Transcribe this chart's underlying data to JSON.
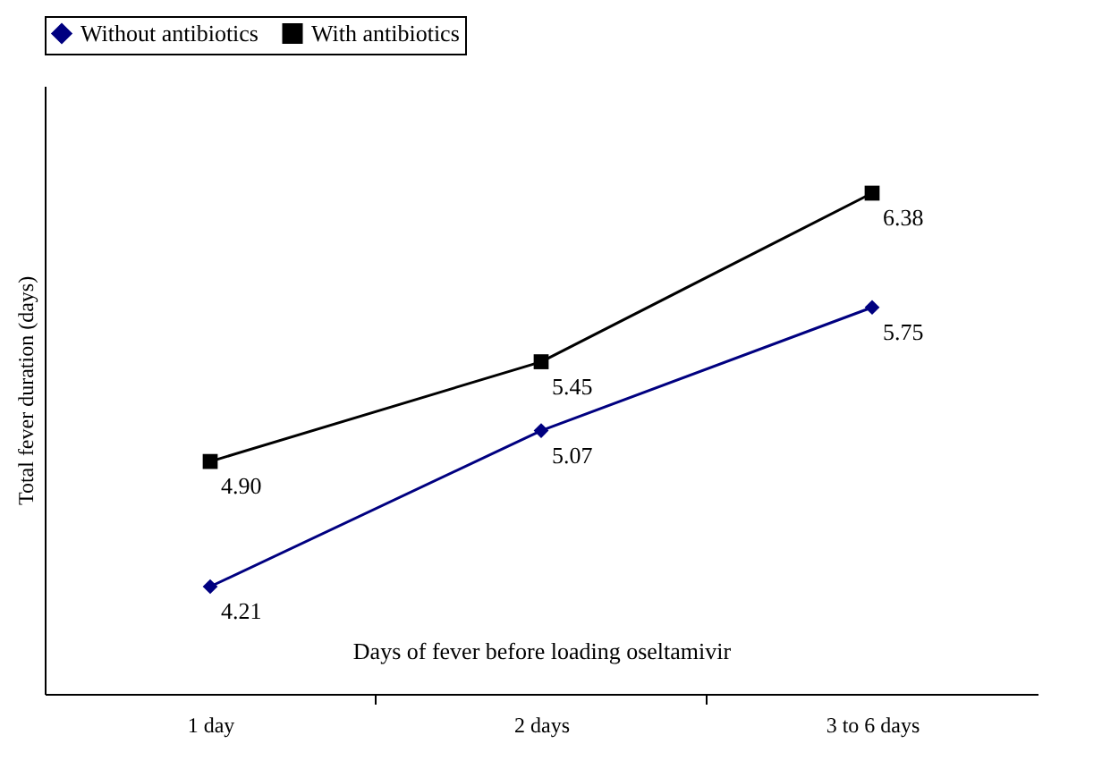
{
  "chart_data": {
    "type": "line",
    "xlabel": "Days of fever before loading oseltamivir",
    "ylabel": "Total fever duration (days)",
    "categories": [
      "1 day",
      "2 days",
      "3 to 6 days"
    ],
    "series": [
      {
        "name": "Without antibiotics",
        "color": "#000080",
        "marker": "diamond",
        "values": [
          4.21,
          5.07,
          5.75
        ],
        "value_labels": [
          "4.21",
          "5.07",
          "5.75"
        ]
      },
      {
        "name": "With antibiotics",
        "color": "#000000",
        "marker": "square",
        "values": [
          4.9,
          5.45,
          6.38
        ],
        "value_labels": [
          "4.90",
          "5.45",
          "6.38"
        ]
      }
    ],
    "legend": "top",
    "grid": false,
    "tick_labels": "x"
  }
}
